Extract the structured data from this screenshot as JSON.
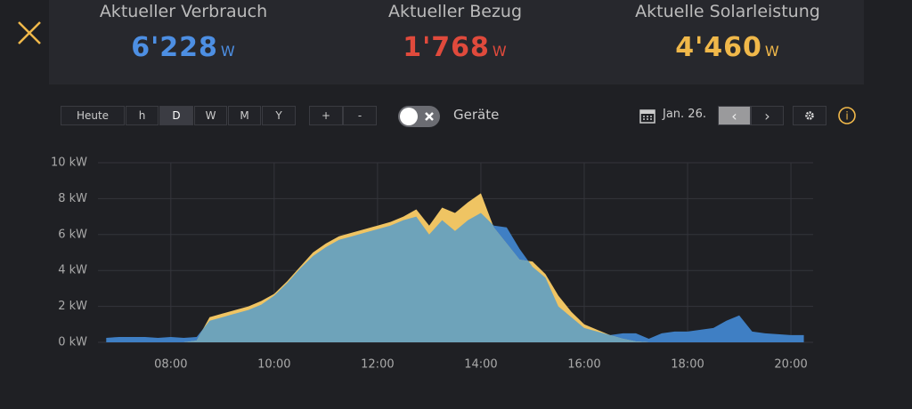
{
  "header": {
    "stats": [
      {
        "label": "Aktueller Verbrauch",
        "value": "6'228",
        "unit": "W",
        "color": "#4d8fe3"
      },
      {
        "label": "Aktueller Bezug",
        "value": "1'768",
        "unit": "W",
        "color": "#e04a3c"
      },
      {
        "label": "Aktuelle Solarleistung",
        "value": "4'460",
        "unit": "W",
        "color": "#f0b84a"
      }
    ]
  },
  "toolbar": {
    "ranges": [
      "Heute",
      "h",
      "D",
      "W",
      "M",
      "Y"
    ],
    "active_range": 2,
    "zoom": [
      "+",
      "-"
    ],
    "toggle_label": "Geräte",
    "date": "Jan. 26.",
    "prev": "‹",
    "next": "›",
    "info": "i"
  },
  "chart_data": {
    "type": "area",
    "x": [
      6.75,
      7,
      7.25,
      7.5,
      7.75,
      8,
      8.25,
      8.5,
      8.75,
      9,
      9.25,
      9.5,
      9.75,
      10,
      10.25,
      10.5,
      10.75,
      11,
      11.25,
      11.5,
      11.75,
      12,
      12.25,
      12.5,
      12.75,
      13,
      13.25,
      13.5,
      13.75,
      14,
      14.25,
      14.5,
      14.75,
      15,
      15.25,
      15.5,
      15.75,
      16,
      16.25,
      16.5,
      16.75,
      17,
      17.25,
      17.5,
      17.75,
      18,
      18.25,
      18.5,
      18.75,
      19,
      19.25,
      19.5,
      19.75,
      20,
      20.25
    ],
    "series": [
      {
        "color": "#3f7fc4",
        "values": [
          0.25,
          0.3,
          0.3,
          0.3,
          0.25,
          0.3,
          0.25,
          0.3,
          1.2,
          1.4,
          1.6,
          1.8,
          2.1,
          2.6,
          3.3,
          4.1,
          4.8,
          5.3,
          5.7,
          5.9,
          6.1,
          6.3,
          6.5,
          6.8,
          7.0,
          6.0,
          6.8,
          6.2,
          6.8,
          7.2,
          6.5,
          6.4,
          5.2,
          4.2,
          3.6,
          2.0,
          1.4,
          0.8,
          0.6,
          0.4,
          0.5,
          0.5,
          0.2,
          0.5,
          0.6,
          0.6,
          0.7,
          0.8,
          1.2,
          1.5,
          0.6,
          0.5,
          0.45,
          0.4,
          0.4
        ]
      },
      {
        "color": "#efc463",
        "values": [
          0,
          0,
          0,
          0,
          0,
          0,
          0,
          0.1,
          1.4,
          1.6,
          1.8,
          2.0,
          2.3,
          2.7,
          3.4,
          4.2,
          5.0,
          5.5,
          5.9,
          6.1,
          6.3,
          6.5,
          6.7,
          7.0,
          7.4,
          6.5,
          7.5,
          7.2,
          7.8,
          8.3,
          6.4,
          5.5,
          4.6,
          4.5,
          3.8,
          2.6,
          1.7,
          1.0,
          0.7,
          0.4,
          0.2,
          0.05,
          0,
          0,
          0,
          0,
          0,
          0,
          0,
          0,
          0,
          0,
          0,
          0,
          0
        ]
      }
    ],
    "overlap_color": "#6ea3ba",
    "xlim": [
      6.59,
      20.43
    ],
    "ylim": [
      0,
      10
    ],
    "xticks": [
      {
        "value": 8,
        "label": "08:00"
      },
      {
        "value": 10,
        "label": "10:00"
      },
      {
        "value": 12,
        "label": "12:00"
      },
      {
        "value": 14,
        "label": "14:00"
      },
      {
        "value": 16,
        "label": "16:00"
      },
      {
        "value": 18,
        "label": "18:00"
      },
      {
        "value": 20,
        "label": "20:00"
      }
    ],
    "yticks": [
      {
        "value": 0,
        "label": "0 kW"
      },
      {
        "value": 2,
        "label": "2 kW"
      },
      {
        "value": 4,
        "label": "4 kW"
      },
      {
        "value": 6,
        "label": "6 kW"
      },
      {
        "value": 8,
        "label": "8 kW"
      },
      {
        "value": 10,
        "label": "10 kW"
      }
    ],
    "grid": true
  }
}
